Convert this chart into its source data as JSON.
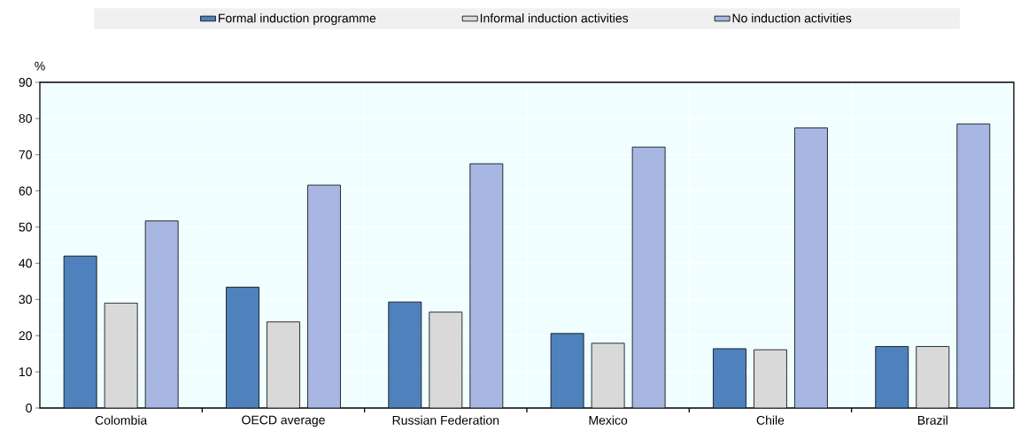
{
  "chart_data": {
    "type": "bar",
    "ylabel": "%",
    "categories": [
      "Colombia",
      "OECD average",
      "Russian Federation",
      "Mexico",
      "Chile",
      "Brazil"
    ],
    "series": [
      {
        "name": "Formal induction programme",
        "color": "#4f81bd",
        "values": [
          42.0,
          33.4,
          29.3,
          20.6,
          16.4,
          17.0
        ]
      },
      {
        "name": "Informal induction activities",
        "color": "#d9d9d9",
        "values": [
          29.0,
          23.8,
          26.5,
          17.9,
          16.1,
          17.0
        ]
      },
      {
        "name": "No induction activities",
        "color": "#a7b7e2",
        "values": [
          51.7,
          61.6,
          67.5,
          72.1,
          77.4,
          78.5
        ]
      }
    ],
    "ylim": [
      0,
      90
    ],
    "yticks": [
      0,
      10,
      20,
      30,
      40,
      50,
      60,
      70,
      80,
      90
    ],
    "grid": true,
    "legend": "top"
  }
}
